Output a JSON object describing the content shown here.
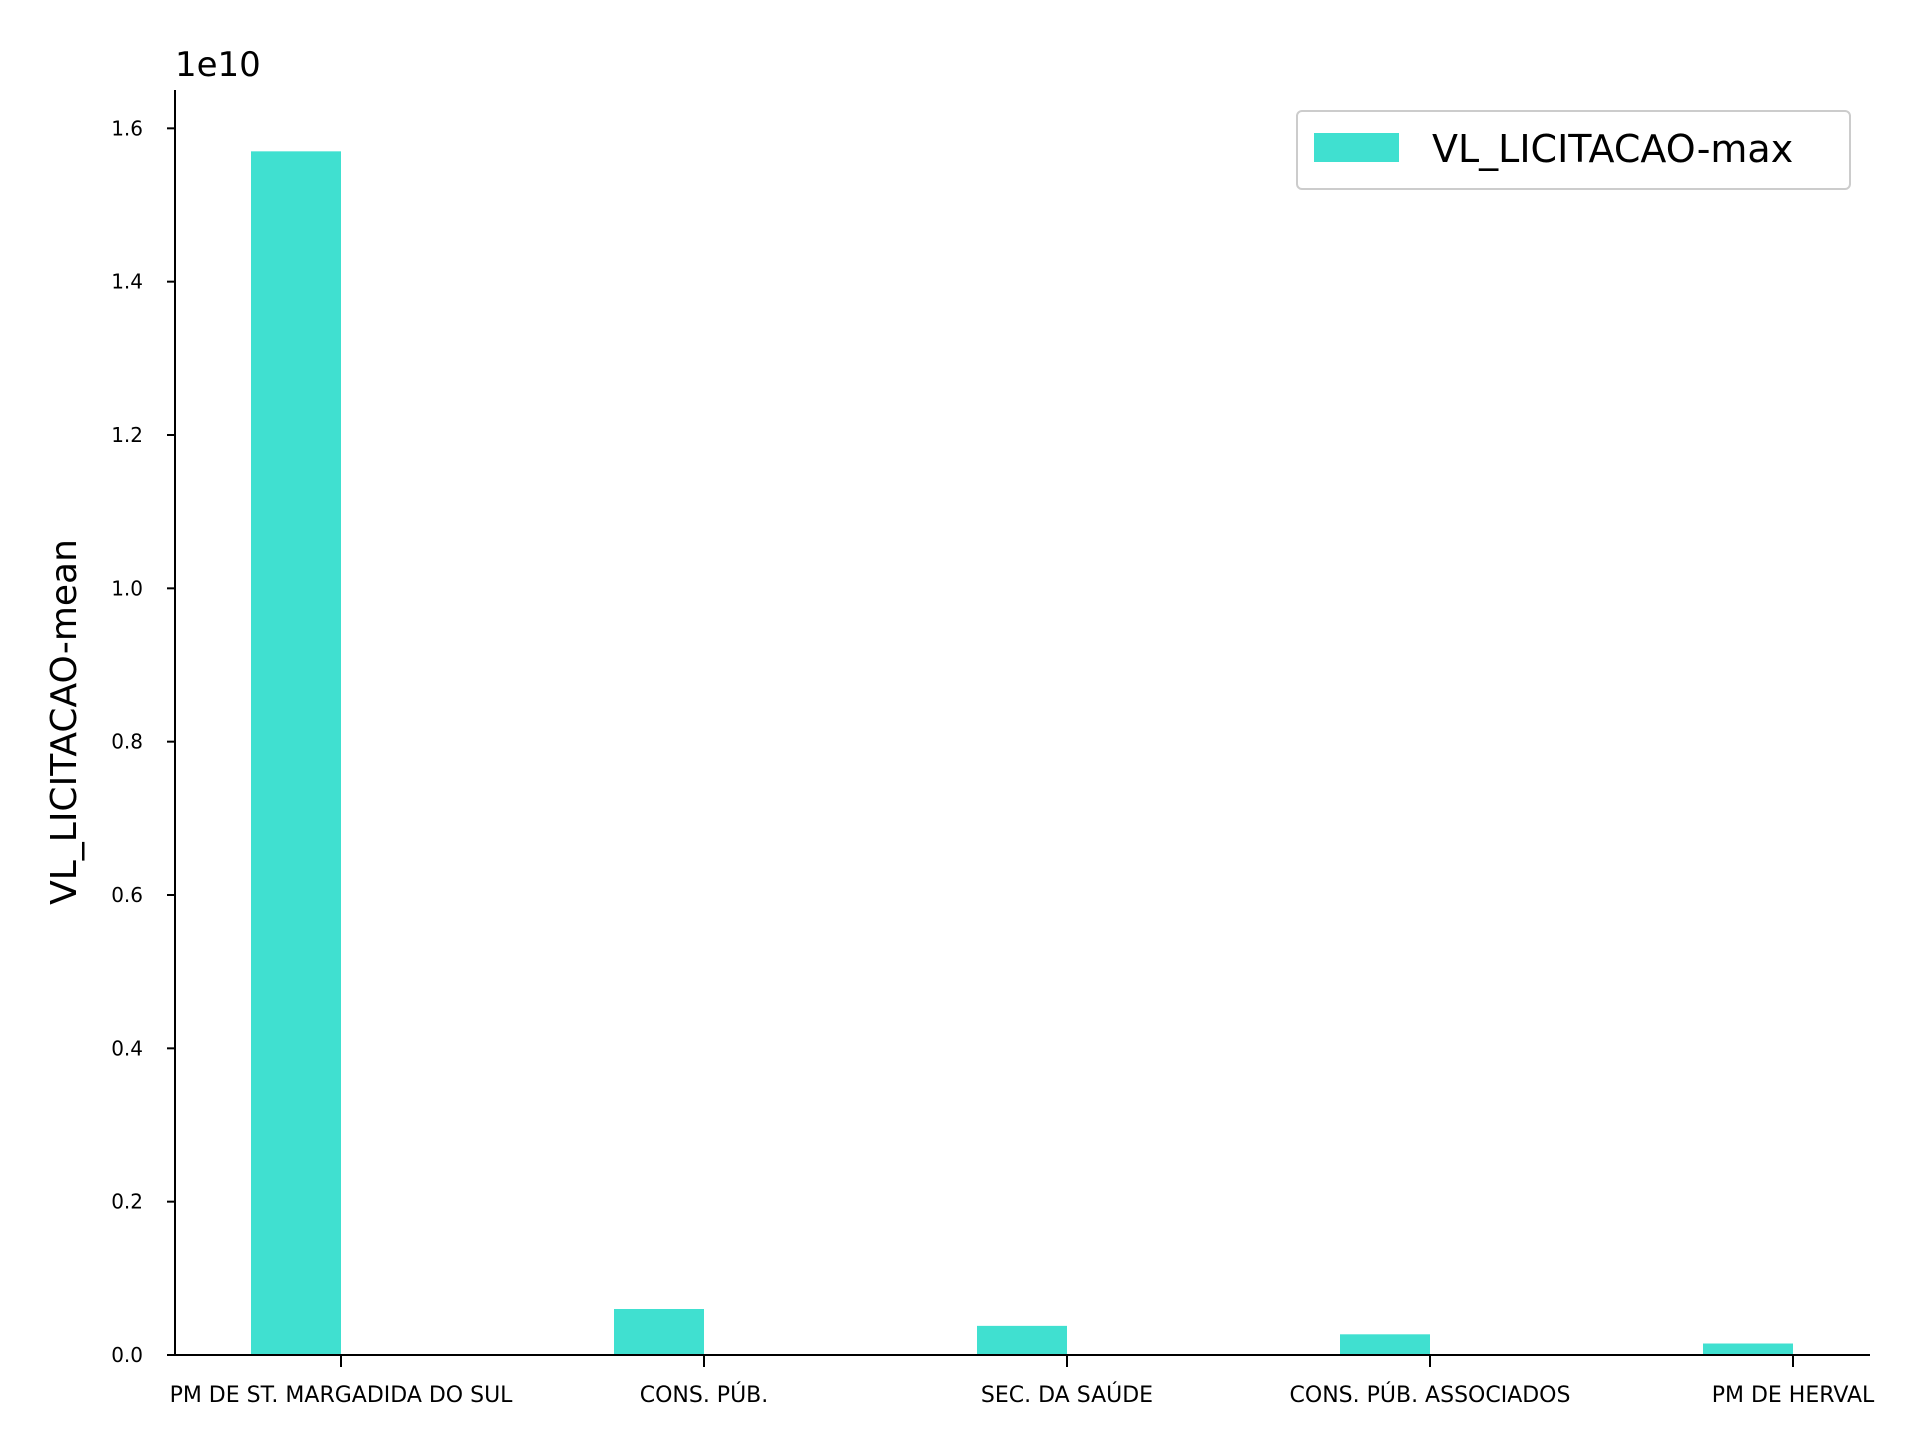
{
  "chart_data": {
    "type": "bar",
    "categories": [
      "PM DE ST. MARGADIDA DO SUL",
      "CONS. PÚB.",
      "SEC. DA SAÚDE",
      "CONS. PÚB. ASSOCIADOS",
      "PM DE HERVAL"
    ],
    "series": [
      {
        "name": "VL_LICITACAO-max",
        "values": [
          15700000000,
          600000000,
          380000000,
          270000000,
          150000000
        ],
        "color": "#40e0d0"
      }
    ],
    "title": "",
    "xlabel": "",
    "ylabel": "VL_LICITACAO-mean",
    "ylim": [
      0,
      16500000000
    ],
    "yticks": [
      0,
      2000000000,
      4000000000,
      6000000000,
      8000000000,
      10000000000,
      12000000000,
      14000000000,
      16000000000
    ],
    "ytick_labels": [
      "0.0",
      "0.2",
      "0.4",
      "0.6",
      "0.8",
      "1.0",
      "1.2",
      "1.4",
      "1.6"
    ],
    "y_offset_label": "1e10",
    "legend_position": "top-right",
    "grid": false
  }
}
